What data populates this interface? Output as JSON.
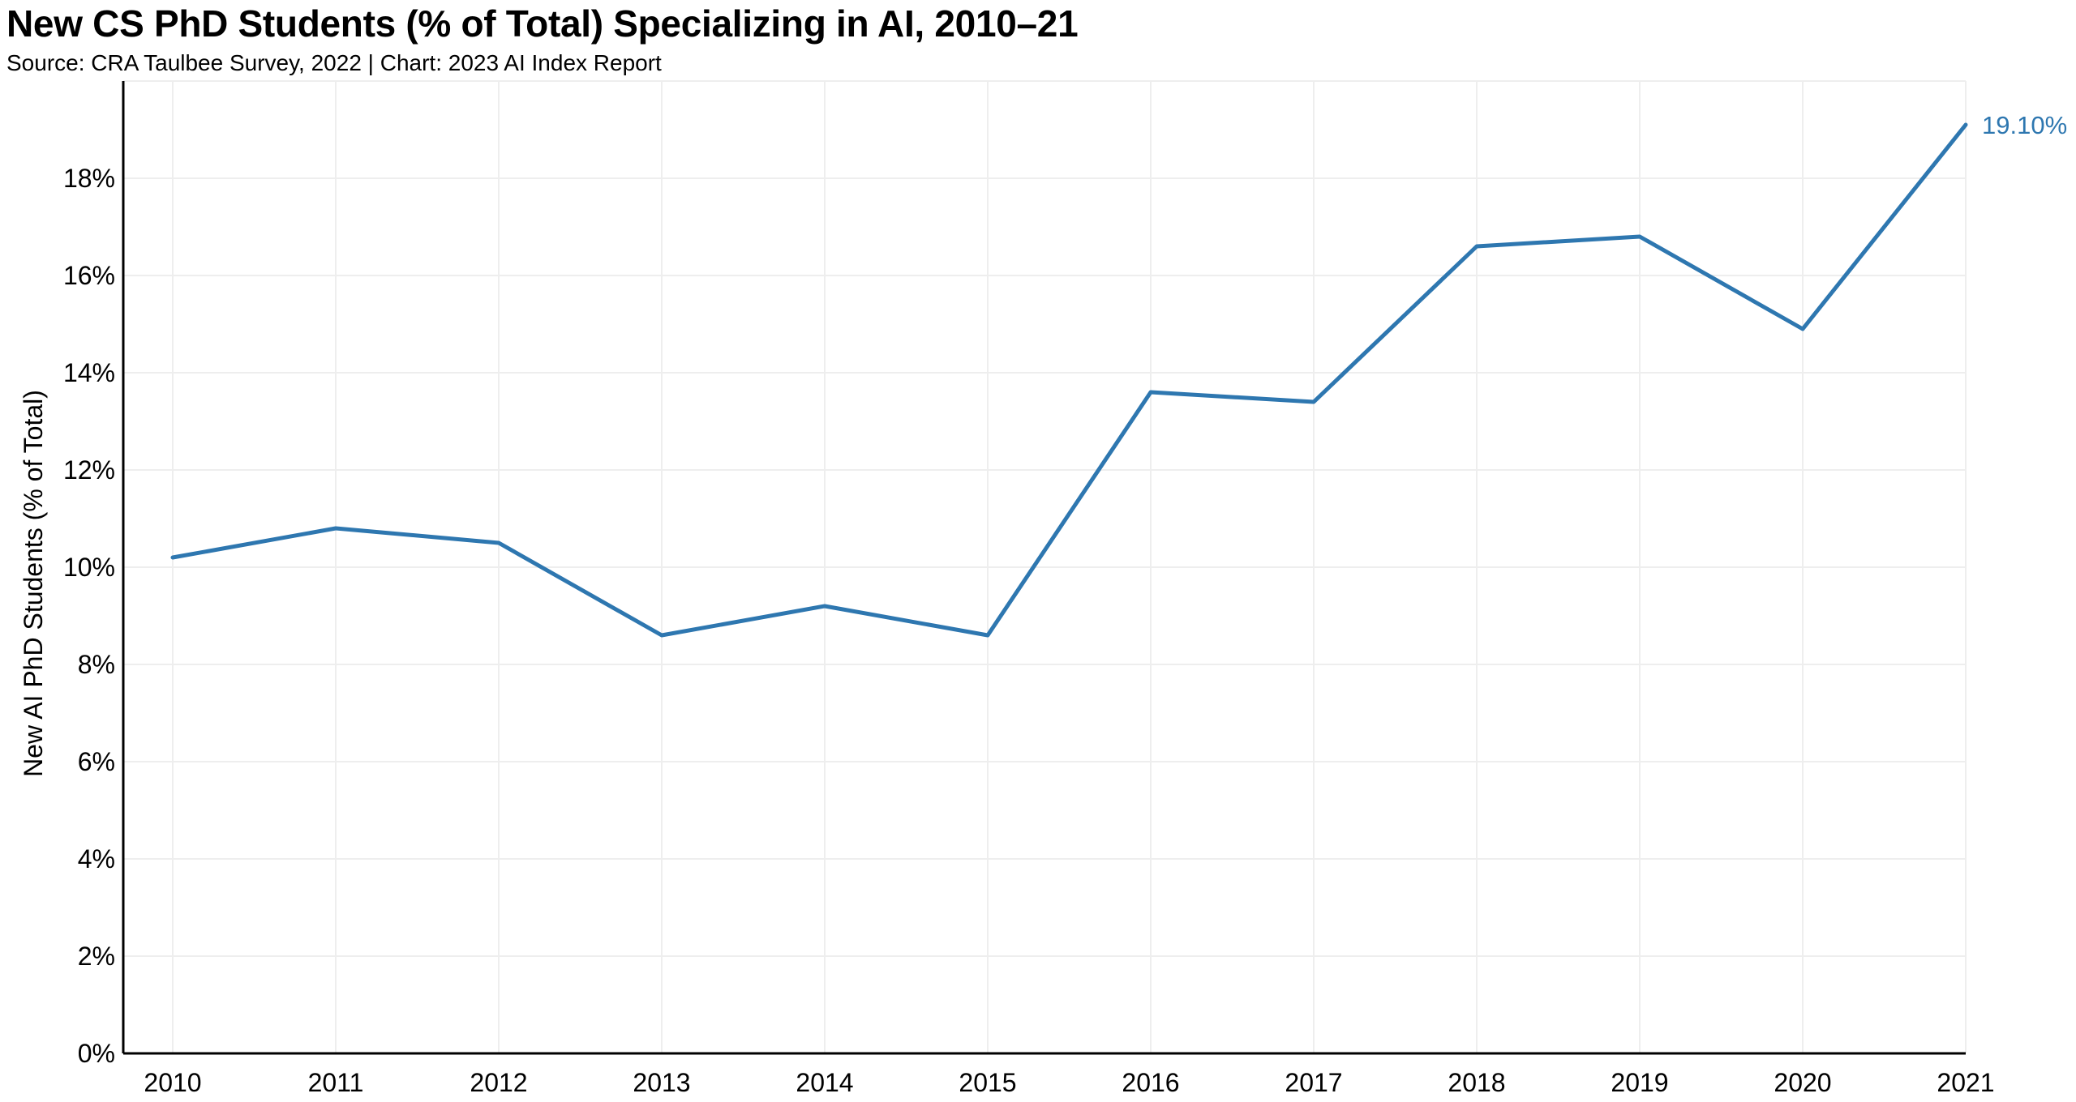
{
  "chart_data": {
    "type": "line",
    "title": "New CS PhD Students (% of Total) Specializing in AI, 2010–21",
    "subtitle": "Source: CRA Taulbee Survey, 2022 | Chart: 2023 AI Index Report",
    "xlabel": "",
    "ylabel": "New AI PhD Students (% of Total)",
    "categories": [
      "2010",
      "2011",
      "2012",
      "2013",
      "2014",
      "2015",
      "2016",
      "2017",
      "2018",
      "2019",
      "2020",
      "2021"
    ],
    "series": [
      {
        "name": "New AI PhD Students (% of Total)",
        "values": [
          10.2,
          10.8,
          10.5,
          8.6,
          9.2,
          8.6,
          13.6,
          13.4,
          16.6,
          16.8,
          14.9,
          19.1
        ],
        "color": "#2e77b0"
      }
    ],
    "end_label": "19.10%",
    "ylim": [
      0,
      20
    ],
    "yticks": [
      0,
      2,
      4,
      6,
      8,
      10,
      12,
      14,
      16,
      18
    ],
    "ytick_labels": [
      "0%",
      "2%",
      "4%",
      "6%",
      "8%",
      "10%",
      "12%",
      "14%",
      "16%",
      "18%"
    ],
    "grid": true,
    "legend": "none"
  }
}
